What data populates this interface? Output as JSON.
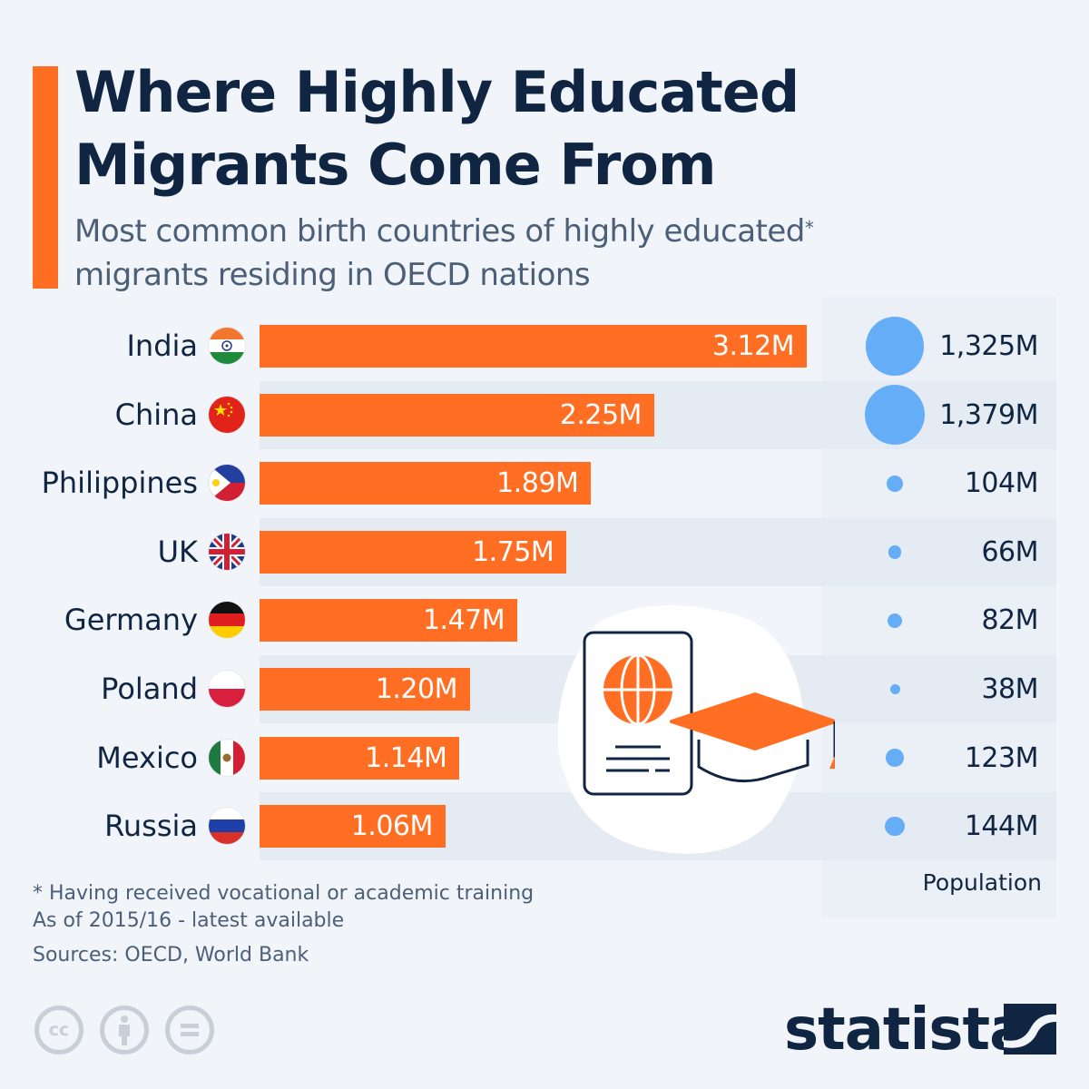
{
  "header": {
    "title_line1": "Where Highly Educated",
    "title_line2": "Migrants Come From",
    "subtitle_line1": "Most common birth countries of highly educated",
    "subtitle_asterisk": "*",
    "subtitle_line2": "migrants residing in OECD nations"
  },
  "colors": {
    "accent": "#ff6e23",
    "title": "#0f2542",
    "subtitle": "#4b5f78",
    "background": "#f1f5fa",
    "panel": "#ebf0f6",
    "dot": "#66adf7"
  },
  "rows": [
    {
      "country": "India",
      "flag": "india-flag",
      "value_label": "3.12M",
      "population_label": "1,325M"
    },
    {
      "country": "China",
      "flag": "china-flag",
      "value_label": "2.25M",
      "population_label": "1,379M"
    },
    {
      "country": "Philippines",
      "flag": "philippines-flag",
      "value_label": "1.89M",
      "population_label": "104M"
    },
    {
      "country": "UK",
      "flag": "uk-flag",
      "value_label": "1.75M",
      "population_label": "66M"
    },
    {
      "country": "Germany",
      "flag": "germany-flag",
      "value_label": "1.47M",
      "population_label": "82M"
    },
    {
      "country": "Poland",
      "flag": "poland-flag",
      "value_label": "1.20M",
      "population_label": "38M"
    },
    {
      "country": "Mexico",
      "flag": "mexico-flag",
      "value_label": "1.14M",
      "population_label": "123M"
    },
    {
      "country": "Russia",
      "flag": "russia-flag",
      "value_label": "1.06M",
      "population_label": "144M"
    }
  ],
  "population_header": "Population",
  "footer": {
    "note1": "* Having received vocational or academic training",
    "note2": "As of 2015/16 - latest available",
    "sources": "Sources: OECD, World Bank",
    "logo": "statista"
  },
  "chart_data": {
    "type": "bar",
    "orientation": "horizontal",
    "title": "Where Highly Educated Migrants Come From",
    "subtitle": "Most common birth countries of highly educated* migrants residing in OECD nations",
    "categories": [
      "India",
      "China",
      "Philippines",
      "UK",
      "Germany",
      "Poland",
      "Mexico",
      "Russia"
    ],
    "series": [
      {
        "name": "Highly educated migrants (millions)",
        "values": [
          3.12,
          2.25,
          1.89,
          1.75,
          1.47,
          1.2,
          1.14,
          1.06
        ]
      },
      {
        "name": "Population (millions)",
        "values": [
          1325,
          1379,
          104,
          66,
          82,
          38,
          123,
          144
        ],
        "render": "bubble"
      }
    ],
    "xlabel": "",
    "ylabel": "",
    "grid": false,
    "legend": "none",
    "annotations": [
      "* Having received vocational or academic training",
      "As of 2015/16 - latest available"
    ],
    "source": "Sources: OECD, World Bank"
  }
}
